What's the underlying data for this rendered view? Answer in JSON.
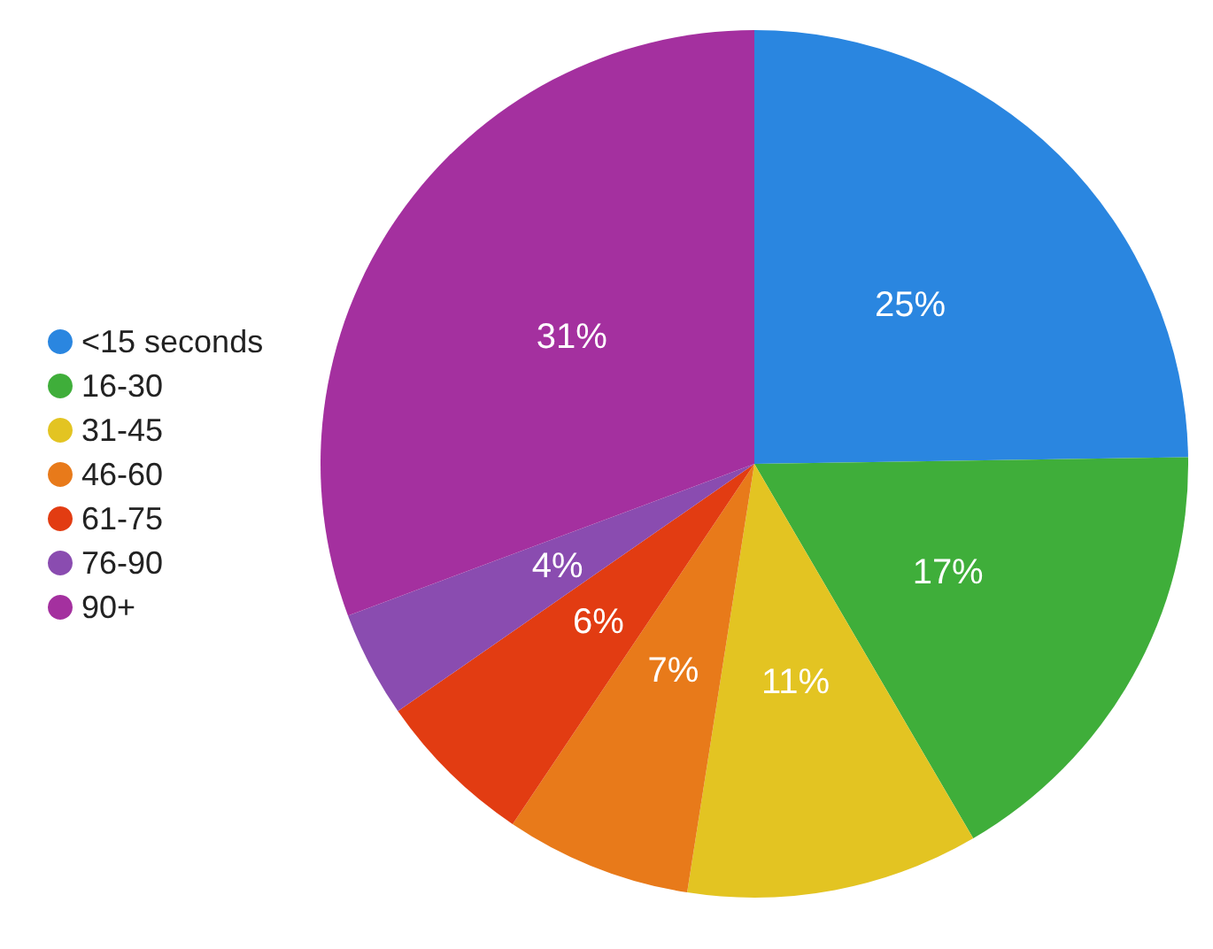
{
  "chart_data": {
    "type": "pie",
    "categories": [
      "<15 seconds",
      "16-30",
      "31-45",
      "46-60",
      "61-75",
      "76-90",
      "90+"
    ],
    "values": [
      25,
      17,
      11,
      7,
      6,
      4,
      31
    ],
    "value_labels": [
      "25%",
      "17%",
      "11%",
      "7%",
      "6%",
      "4%",
      "31%"
    ],
    "colors": [
      "#2a86e0",
      "#3fae3a",
      "#e3c422",
      "#e87a1a",
      "#e23c12",
      "#8a4cb0",
      "#a4309f"
    ],
    "legend": "left"
  }
}
